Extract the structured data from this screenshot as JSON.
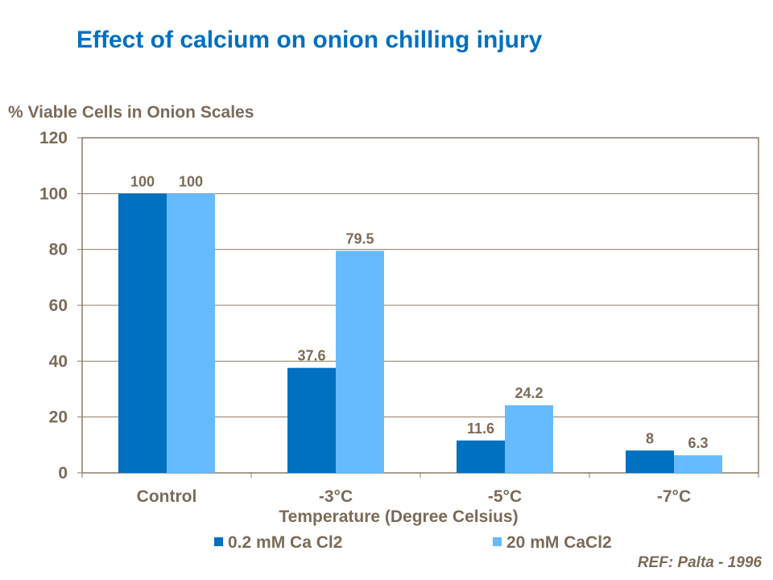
{
  "chart_data": {
    "type": "bar",
    "title": "Effect of calcium on onion chilling injury",
    "ylabel": "% Viable Cells in Onion Scales",
    "xlabel": "Temperature (Degree Celsius)",
    "categories": [
      "Control",
      "-3°C",
      "-5°C",
      "-7°C"
    ],
    "series": [
      {
        "name": "0.2 mM Ca Cl2",
        "values": [
          100,
          37.6,
          11.6,
          8
        ],
        "color": "#0070C0"
      },
      {
        "name": "20 mM CaCl2",
        "values": [
          100,
          79.5,
          24.2,
          6.3
        ],
        "color": "#66BBFF"
      }
    ],
    "ylim": [
      0,
      120
    ],
    "yticks": [
      0,
      20,
      40,
      60,
      80,
      100,
      120
    ],
    "grid": true,
    "legend": "bottom",
    "data_labels": true
  },
  "reference": "REF: Palta - 1996"
}
